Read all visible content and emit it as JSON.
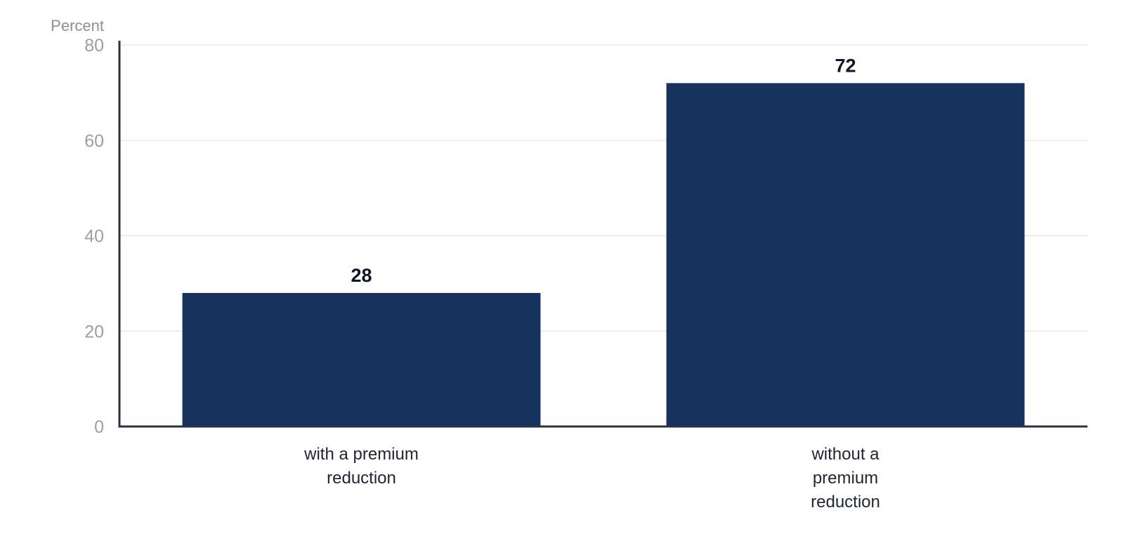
{
  "chart_data": {
    "type": "bar",
    "ylabel": "Percent",
    "xlabel": "",
    "title": "",
    "categories": [
      [
        "with a premium",
        "reduction"
      ],
      [
        "without a",
        "premium",
        "reduction"
      ]
    ],
    "values": [
      28,
      72
    ],
    "data_labels": [
      "28",
      "72"
    ],
    "ylim": [
      0,
      80
    ],
    "yticks": [
      0,
      20,
      40,
      60,
      80
    ],
    "grid": true,
    "bar_color": "#17325c"
  }
}
